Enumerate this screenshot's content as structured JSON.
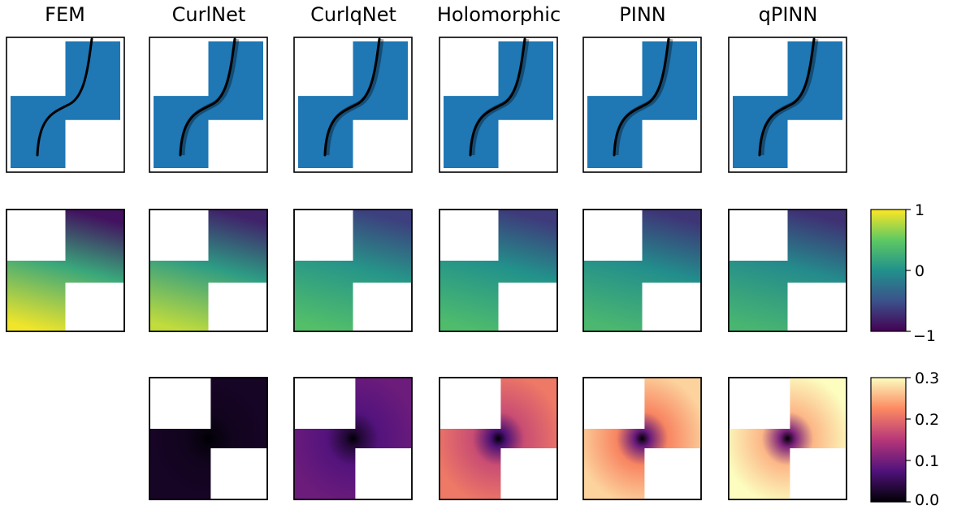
{
  "figure": {
    "columns": [
      "FEM",
      "CurlNet",
      "CurlqNet",
      "Holomorphic",
      "PINN",
      "qPINN"
    ],
    "rows": [
      {
        "name": "domain-trajectory",
        "panels": [
          true,
          true,
          true,
          true,
          true,
          true
        ]
      },
      {
        "name": "solution-field",
        "panels": [
          true,
          true,
          true,
          true,
          true,
          true
        ]
      },
      {
        "name": "error-field",
        "panels": [
          false,
          true,
          true,
          true,
          true,
          true
        ]
      }
    ],
    "domain_color": "#1f77b4",
    "colorbars": [
      {
        "name": "viridis",
        "ticks": [
          "1",
          "0",
          "−1"
        ],
        "range": [
          -1,
          1
        ],
        "colors": [
          "#fde725",
          "#5ec962",
          "#21918c",
          "#3b528b",
          "#440154"
        ]
      },
      {
        "name": "magma",
        "ticks": [
          "0.3",
          "0.2",
          "0.1",
          "0.0"
        ],
        "range": [
          0,
          0.3
        ],
        "colors": [
          "#fcfdbf",
          "#fc8961",
          "#b73779",
          "#51127c",
          "#000004"
        ]
      }
    ],
    "error_levels": [
      null,
      0.02,
      0.09,
      0.2,
      0.26,
      0.3
    ]
  }
}
